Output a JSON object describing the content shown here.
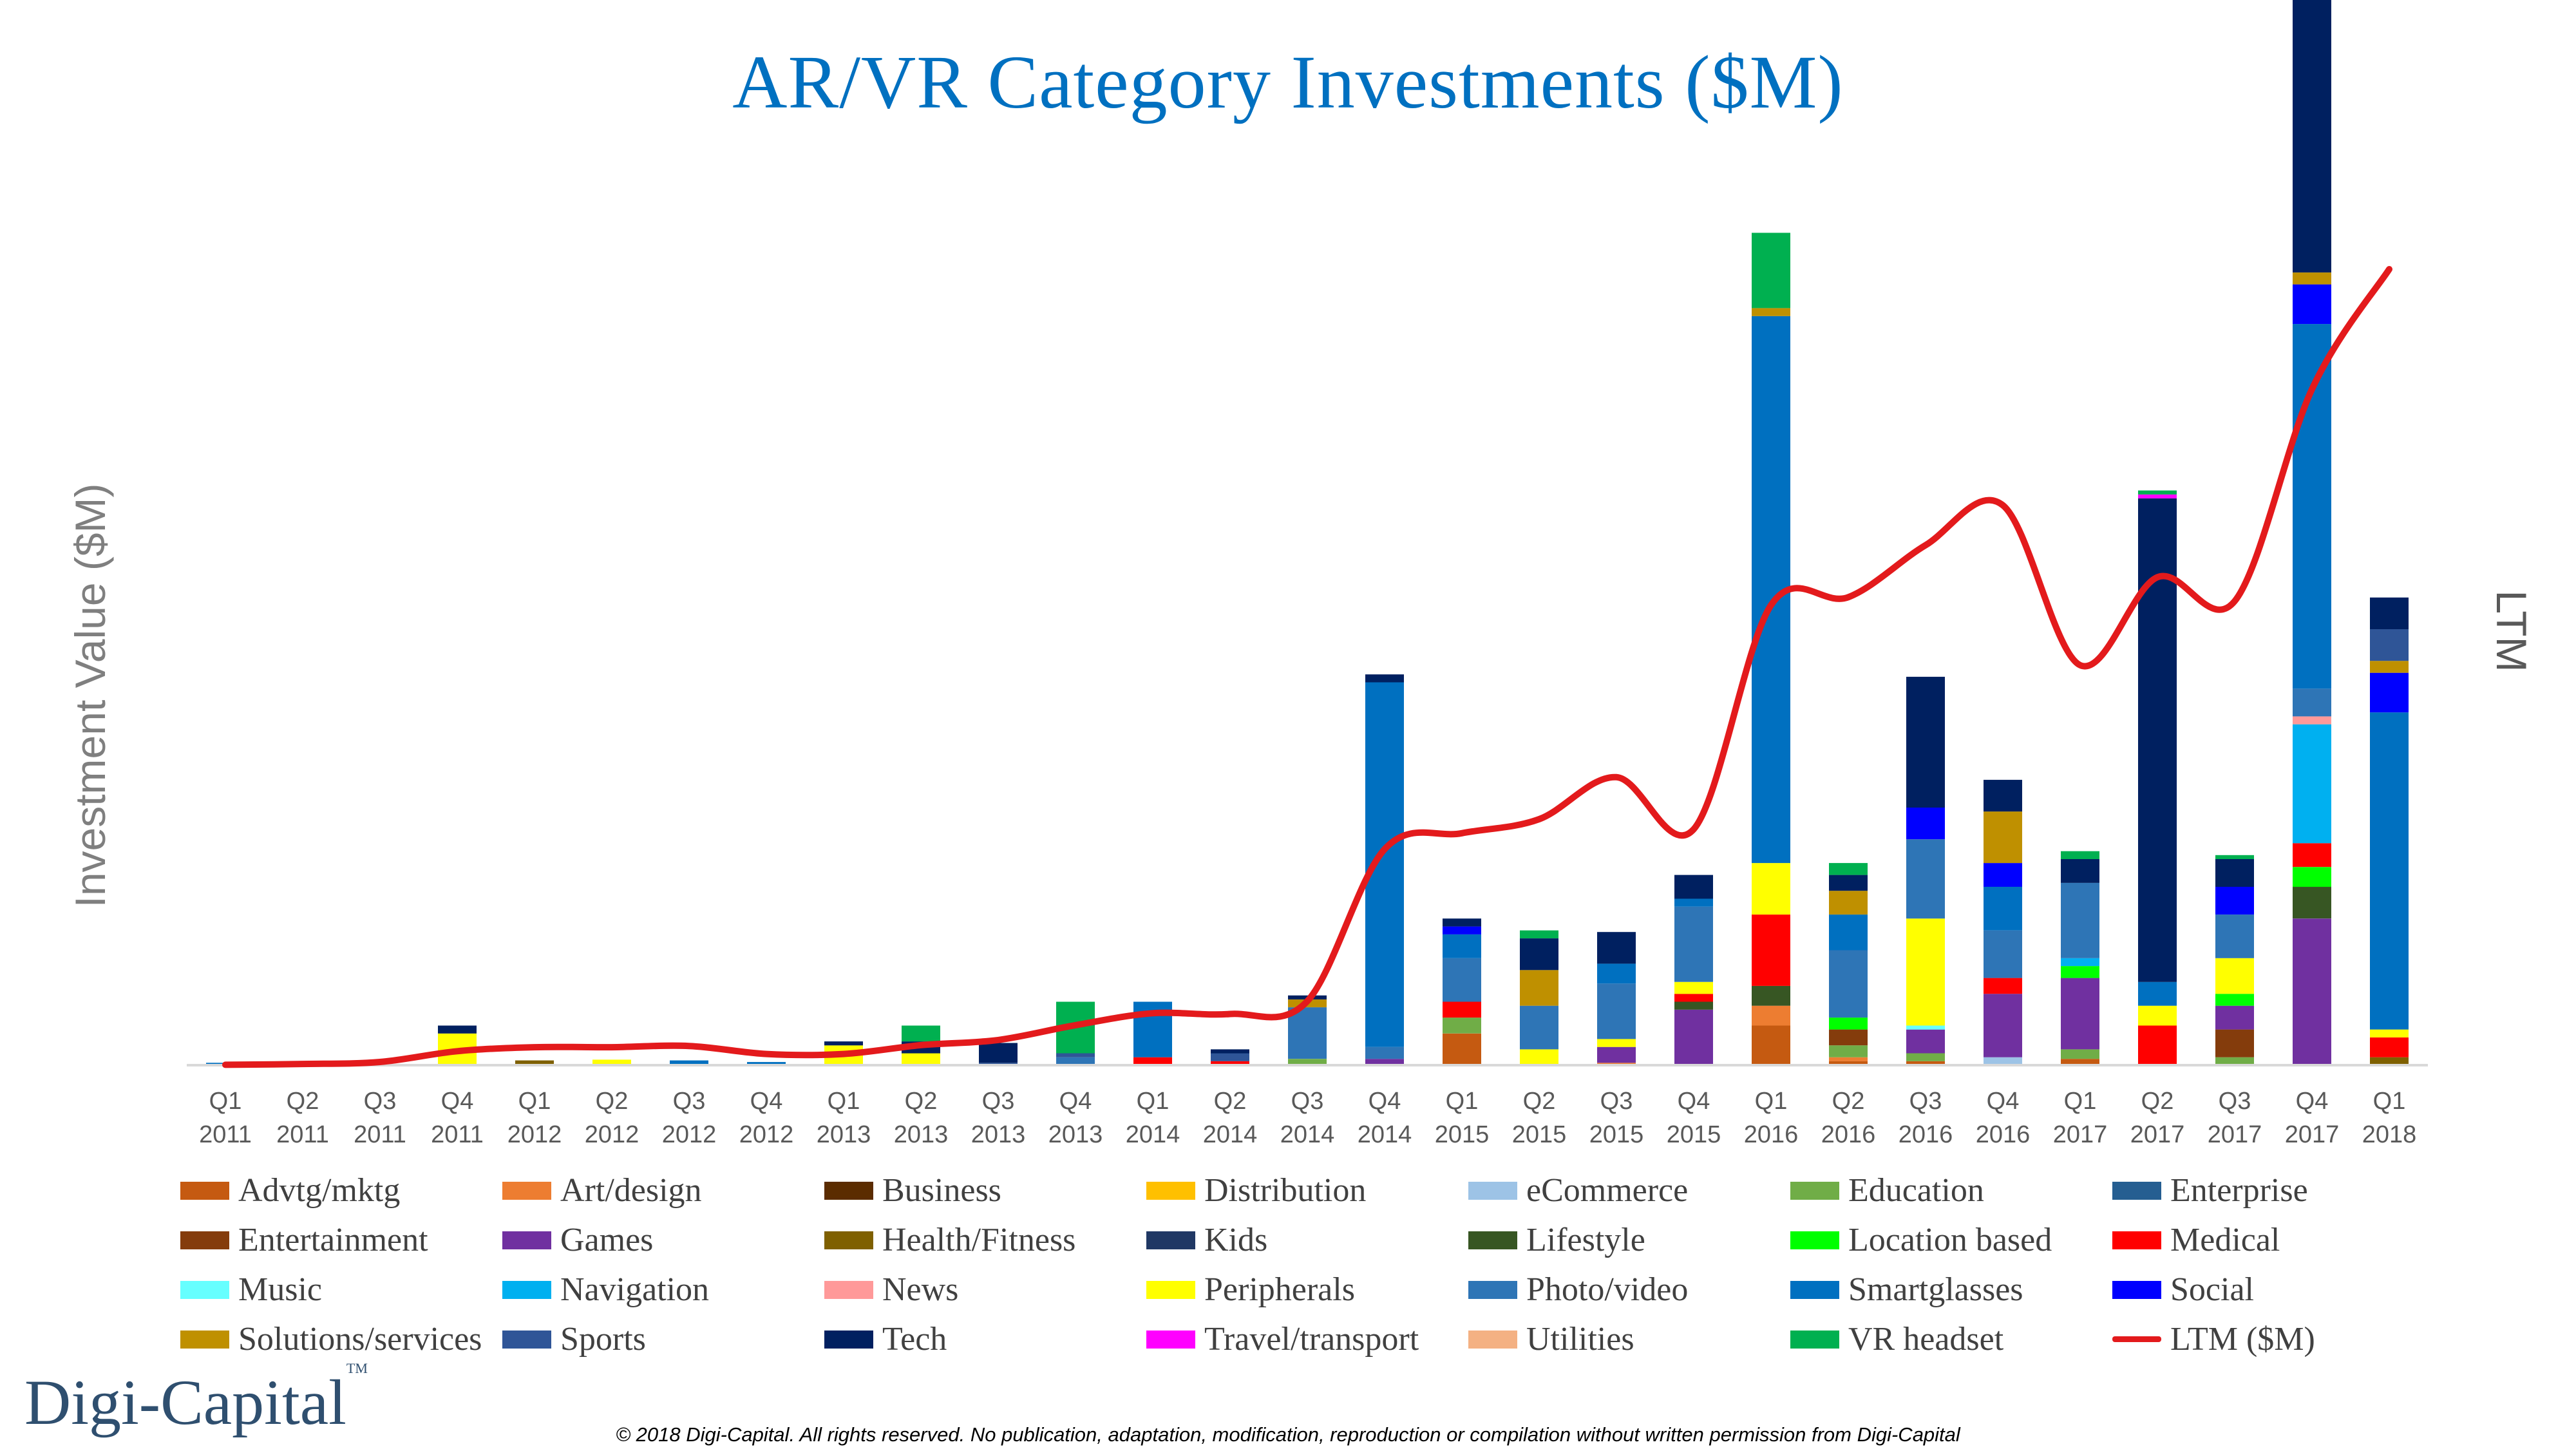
{
  "header": {
    "title": "AR/VR Category Investments ($M)"
  },
  "axes": {
    "y_left_label": "Investment Value ($M)",
    "y_right_label": "LTM"
  },
  "branding": {
    "logo_text": "Digi-Capital",
    "logo_mark": "TM"
  },
  "footer": {
    "copyright": "© 2018 Digi-Capital. All rights reserved. No publication, adaptation, modification, reproduction or compilation without written permission from Digi-Capital"
  },
  "chart_data": {
    "type": "bar",
    "stacked": true,
    "y_axis_tick_labels_shown": false,
    "categories": [
      {
        "q": "Q1",
        "y": "2011"
      },
      {
        "q": "Q2",
        "y": "2011"
      },
      {
        "q": "Q3",
        "y": "2011"
      },
      {
        "q": "Q4",
        "y": "2011"
      },
      {
        "q": "Q1",
        "y": "2012"
      },
      {
        "q": "Q2",
        "y": "2012"
      },
      {
        "q": "Q3",
        "y": "2012"
      },
      {
        "q": "Q4",
        "y": "2012"
      },
      {
        "q": "Q1",
        "y": "2013"
      },
      {
        "q": "Q2",
        "y": "2013"
      },
      {
        "q": "Q3",
        "y": "2013"
      },
      {
        "q": "Q4",
        "y": "2013"
      },
      {
        "q": "Q1",
        "y": "2014"
      },
      {
        "q": "Q2",
        "y": "2014"
      },
      {
        "q": "Q3",
        "y": "2014"
      },
      {
        "q": "Q4",
        "y": "2014"
      },
      {
        "q": "Q1",
        "y": "2015"
      },
      {
        "q": "Q2",
        "y": "2015"
      },
      {
        "q": "Q3",
        "y": "2015"
      },
      {
        "q": "Q4",
        "y": "2015"
      },
      {
        "q": "Q1",
        "y": "2016"
      },
      {
        "q": "Q2",
        "y": "2016"
      },
      {
        "q": "Q3",
        "y": "2016"
      },
      {
        "q": "Q4",
        "y": "2016"
      },
      {
        "q": "Q1",
        "y": "2017"
      },
      {
        "q": "Q2",
        "y": "2017"
      },
      {
        "q": "Q3",
        "y": "2017"
      },
      {
        "q": "Q4",
        "y": "2017"
      },
      {
        "q": "Q1",
        "y": "2018"
      }
    ],
    "series": [
      {
        "name": "Advtg/mktg",
        "color": "#C55A11",
        "values": [
          0,
          0,
          0,
          0,
          0,
          0,
          0,
          0,
          0,
          0,
          0,
          0,
          0,
          0,
          0,
          0,
          40,
          0,
          0,
          0,
          50,
          5,
          5,
          0,
          8,
          0,
          0,
          0,
          0
        ]
      },
      {
        "name": "Art/design",
        "color": "#ED7D31",
        "values": [
          0,
          0,
          0,
          0,
          0,
          0,
          0,
          0,
          0,
          0,
          0,
          0,
          0,
          0,
          0,
          0,
          0,
          0,
          3,
          0,
          25,
          5,
          0,
          0,
          0,
          0,
          0,
          0,
          0
        ]
      },
      {
        "name": "Business",
        "color": "#5B2C00",
        "values": [
          0,
          0,
          0,
          0,
          0,
          0,
          0,
          0,
          0,
          0,
          0,
          0,
          0,
          0,
          0,
          0,
          0,
          0,
          0,
          0,
          0,
          0,
          0,
          0,
          0,
          0,
          0,
          0,
          0
        ]
      },
      {
        "name": "Distribution",
        "color": "#FFC000",
        "values": [
          0,
          0,
          0,
          0,
          0,
          0,
          0,
          0,
          0,
          0,
          0,
          0,
          0,
          0,
          0,
          0,
          0,
          0,
          0,
          0,
          0,
          0,
          0,
          0,
          0,
          0,
          0,
          0,
          0
        ]
      },
      {
        "name": "eCommerce",
        "color": "#9DC3E6",
        "values": [
          0,
          0,
          0,
          0,
          0,
          0,
          0,
          0,
          0,
          0,
          0,
          0,
          0,
          0,
          0,
          0,
          0,
          0,
          0,
          0,
          0,
          0,
          0,
          10,
          0,
          0,
          0,
          0,
          0
        ]
      },
      {
        "name": "Education",
        "color": "#70AD47",
        "values": [
          0,
          0,
          0,
          0,
          0,
          0,
          0,
          0,
          0,
          0,
          0,
          0,
          0,
          0,
          8,
          0,
          20,
          0,
          0,
          0,
          0,
          15,
          10,
          0,
          12,
          0,
          10,
          0,
          0
        ]
      },
      {
        "name": "Enterprise",
        "color": "#255E91",
        "values": [
          0,
          0,
          0,
          0,
          0,
          0,
          0,
          0,
          0,
          0,
          0,
          0,
          0,
          0,
          0,
          0,
          0,
          0,
          0,
          0,
          0,
          0,
          0,
          0,
          0,
          0,
          0,
          0,
          0
        ]
      },
      {
        "name": "Entertainment",
        "color": "#843C0C",
        "values": [
          0,
          0,
          0,
          0,
          0,
          0,
          0,
          0,
          0,
          0,
          0,
          0,
          0,
          0,
          0,
          0,
          0,
          0,
          0,
          0,
          0,
          20,
          0,
          0,
          0,
          0,
          35,
          0,
          0
        ]
      },
      {
        "name": "Games",
        "color": "#7030A0",
        "values": [
          0,
          0,
          0,
          0,
          0,
          0,
          0,
          0,
          0,
          0,
          0,
          0,
          0,
          0,
          0,
          8,
          0,
          0,
          20,
          70,
          0,
          0,
          30,
          80,
          90,
          0,
          30,
          185,
          0
        ]
      },
      {
        "name": "Health/Fitness",
        "color": "#7F6000",
        "values": [
          0,
          0,
          0,
          0,
          6,
          0,
          0,
          0,
          0,
          0,
          0,
          0,
          0,
          0,
          0,
          0,
          0,
          0,
          0,
          0,
          0,
          0,
          0,
          0,
          0,
          0,
          0,
          0,
          10
        ]
      },
      {
        "name": "Kids",
        "color": "#203864",
        "values": [
          0,
          0,
          0,
          0,
          0,
          0,
          0,
          0,
          0,
          0,
          0,
          0,
          0,
          0,
          0,
          0,
          0,
          0,
          0,
          0,
          0,
          0,
          0,
          0,
          0,
          0,
          0,
          0,
          0
        ]
      },
      {
        "name": "Lifestyle",
        "color": "#375623",
        "values": [
          0,
          0,
          0,
          0,
          0,
          0,
          0,
          0,
          0,
          0,
          0,
          0,
          0,
          0,
          0,
          0,
          0,
          0,
          0,
          10,
          25,
          0,
          0,
          0,
          0,
          0,
          0,
          40,
          0
        ]
      },
      {
        "name": "Location based",
        "color": "#00FF00",
        "values": [
          0,
          0,
          0,
          0,
          0,
          0,
          0,
          0,
          0,
          0,
          0,
          0,
          0,
          0,
          0,
          0,
          0,
          0,
          0,
          0,
          0,
          15,
          0,
          0,
          15,
          0,
          15,
          25,
          0
        ]
      },
      {
        "name": "Medical",
        "color": "#FF0000",
        "values": [
          0,
          0,
          0,
          0,
          0,
          0,
          0,
          0,
          0,
          0,
          0,
          0,
          10,
          5,
          0,
          0,
          20,
          0,
          0,
          10,
          90,
          0,
          0,
          20,
          0,
          50,
          0,
          30,
          25
        ]
      },
      {
        "name": "Music",
        "color": "#66FFFF",
        "values": [
          0,
          0,
          0,
          0,
          0,
          0,
          0,
          0,
          0,
          0,
          0,
          0,
          0,
          0,
          0,
          0,
          0,
          0,
          0,
          0,
          0,
          0,
          5,
          0,
          0,
          0,
          0,
          0,
          0
        ]
      },
      {
        "name": "Navigation",
        "color": "#00B0F0",
        "values": [
          0,
          0,
          0,
          0,
          0,
          0,
          0,
          0,
          0,
          0,
          0,
          0,
          0,
          0,
          0,
          0,
          0,
          0,
          0,
          0,
          0,
          0,
          0,
          0,
          10,
          0,
          0,
          150,
          0
        ]
      },
      {
        "name": "News",
        "color": "#FF9999",
        "values": [
          0,
          0,
          0,
          0,
          0,
          0,
          0,
          0,
          0,
          0,
          0,
          0,
          0,
          0,
          0,
          0,
          0,
          0,
          0,
          0,
          0,
          0,
          0,
          0,
          0,
          0,
          0,
          10,
          0
        ]
      },
      {
        "name": "Peripherals",
        "color": "#FFFF00",
        "values": [
          0,
          0,
          0,
          40,
          0,
          7,
          0,
          0,
          25,
          15,
          0,
          0,
          0,
          0,
          0,
          0,
          0,
          20,
          10,
          15,
          65,
          0,
          135,
          0,
          0,
          25,
          45,
          0,
          10
        ]
      },
      {
        "name": "Photo/video",
        "color": "#2E75B6",
        "values": [
          0,
          0,
          0,
          0,
          0,
          0,
          0,
          0,
          0,
          0,
          0,
          10,
          0,
          0,
          65,
          15,
          55,
          55,
          70,
          95,
          0,
          85,
          100,
          60,
          95,
          0,
          55,
          35,
          0
        ]
      },
      {
        "name": "Smartglasses",
        "color": "#0070C0",
        "values": [
          3,
          0,
          0,
          0,
          0,
          0,
          6,
          4,
          0,
          0,
          0,
          0,
          70,
          0,
          0,
          460,
          30,
          0,
          25,
          10,
          690,
          45,
          0,
          55,
          0,
          30,
          0,
          460,
          400
        ]
      },
      {
        "name": "Social",
        "color": "#0000FF",
        "values": [
          0,
          0,
          0,
          0,
          0,
          0,
          0,
          0,
          0,
          0,
          0,
          0,
          0,
          0,
          0,
          0,
          10,
          0,
          0,
          0,
          0,
          0,
          40,
          30,
          0,
          0,
          35,
          50,
          50
        ]
      },
      {
        "name": "Solutions/services",
        "color": "#BF9000",
        "values": [
          0,
          0,
          0,
          0,
          0,
          0,
          0,
          0,
          0,
          0,
          0,
          0,
          0,
          0,
          10,
          0,
          0,
          45,
          0,
          0,
          10,
          30,
          0,
          65,
          0,
          0,
          0,
          15,
          15
        ]
      },
      {
        "name": "Sports",
        "color": "#2F5597",
        "values": [
          0,
          0,
          0,
          0,
          0,
          0,
          0,
          0,
          0,
          0,
          3,
          5,
          0,
          10,
          0,
          0,
          0,
          0,
          0,
          0,
          0,
          0,
          0,
          0,
          0,
          0,
          0,
          0,
          40
        ]
      },
      {
        "name": "Tech",
        "color": "#002060",
        "values": [
          0,
          0,
          0,
          10,
          0,
          0,
          0,
          0,
          5,
          15,
          25,
          0,
          0,
          5,
          5,
          10,
          10,
          40,
          40,
          30,
          0,
          20,
          165,
          40,
          30,
          610,
          35,
          355,
          40
        ]
      },
      {
        "name": "Travel/transport",
        "color": "#FF00FF",
        "values": [
          0,
          0,
          0,
          0,
          0,
          0,
          0,
          0,
          0,
          0,
          0,
          0,
          0,
          0,
          0,
          0,
          0,
          0,
          0,
          0,
          0,
          0,
          0,
          0,
          0,
          5,
          0,
          0,
          0
        ]
      },
      {
        "name": "Utilities",
        "color": "#F4B183",
        "values": [
          0,
          0,
          0,
          0,
          0,
          0,
          0,
          0,
          0,
          0,
          0,
          0,
          0,
          0,
          0,
          0,
          0,
          0,
          0,
          0,
          0,
          0,
          0,
          0,
          0,
          0,
          0,
          0,
          0
        ]
      },
      {
        "name": "VR headset",
        "color": "#00B050",
        "values": [
          0,
          0,
          0,
          0,
          0,
          0,
          0,
          0,
          0,
          20,
          0,
          65,
          0,
          0,
          0,
          0,
          0,
          10,
          0,
          0,
          95,
          15,
          0,
          0,
          10,
          5,
          5,
          25,
          0
        ]
      }
    ],
    "line": {
      "name": "LTM ($M)",
      "color": "#E31A1C",
      "values": [
        1,
        3,
        8,
        35,
        45,
        45,
        48,
        28,
        28,
        50,
        63,
        100,
        130,
        128,
        160,
        540,
        580,
        615,
        720,
        590,
        1150,
        1170,
        1300,
        1400,
        1000,
        1220,
        1160,
        1690,
        1990
      ]
    },
    "ylim": [
      0,
      1100
    ],
    "y2lim": [
      0,
      2180
    ]
  }
}
